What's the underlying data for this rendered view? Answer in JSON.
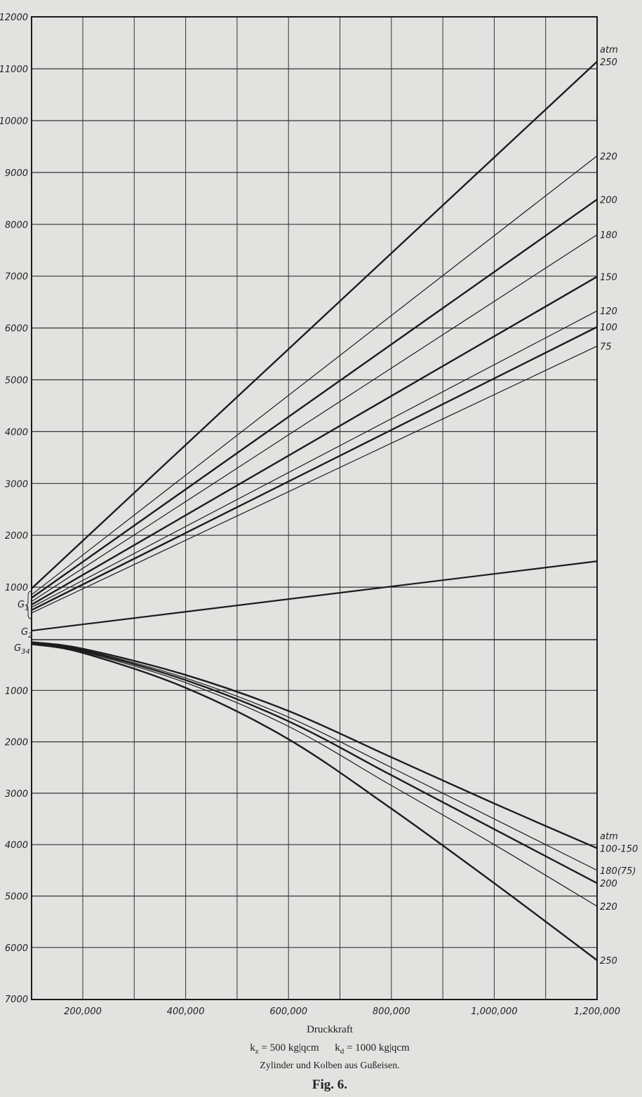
{
  "chart_data": {
    "type": "line",
    "title": "",
    "xlabel": "Druckkraft",
    "xlim": [
      100000,
      1200000
    ],
    "x_ticks": [
      "200,000",
      "400,000",
      "600,000",
      "800,000",
      "1,000,000",
      "1,200,000"
    ],
    "x_tick_values": [
      200000,
      400000,
      600000,
      800000,
      1000000,
      1200000
    ],
    "upper_panel": {
      "ylim": [
        0,
        12000
      ],
      "y_ticks": [
        "1000",
        "2000",
        "3000",
        "4000",
        "5000",
        "6000",
        "7000",
        "8000",
        "9000",
        "10000",
        "11000",
        "12000"
      ],
      "unit_label": "atm",
      "series": [
        {
          "name": "250",
          "x": [
            100000,
            1200000
          ],
          "y": [
            970,
            11140
          ],
          "bold": true
        },
        {
          "name": "220",
          "x": [
            100000,
            1200000
          ],
          "y": [
            850,
            9320
          ],
          "bold": false
        },
        {
          "name": "200",
          "x": [
            100000,
            1200000
          ],
          "y": [
            790,
            8480
          ],
          "bold": true
        },
        {
          "name": "180",
          "x": [
            100000,
            1200000
          ],
          "y": [
            720,
            7800
          ],
          "bold": false
        },
        {
          "name": "150",
          "x": [
            100000,
            1200000
          ],
          "y": [
            660,
            6990
          ],
          "bold": true
        },
        {
          "name": "120",
          "x": [
            100000,
            1200000
          ],
          "y": [
            610,
            6330
          ],
          "bold": false
        },
        {
          "name": "100",
          "x": [
            100000,
            1200000
          ],
          "y": [
            555,
            6020
          ],
          "bold": true
        },
        {
          "name": "75",
          "x": [
            100000,
            1200000
          ],
          "y": [
            500,
            5650
          ],
          "bold": false
        }
      ],
      "g2_series": {
        "x": [
          100000,
          1200000
        ],
        "y": [
          160,
          1500
        ]
      }
    },
    "lower_panel": {
      "ylim": [
        0,
        7000
      ],
      "inverted": true,
      "y_ticks": [
        "1000",
        "2000",
        "3000",
        "4000",
        "5000",
        "6000",
        "7000"
      ],
      "unit_label": "atm",
      "series": [
        {
          "name": "100-150",
          "x": [
            100000,
            200000,
            400000,
            600000,
            800000,
            1000000,
            1200000
          ],
          "y": [
            60,
            190,
            700,
            1400,
            2300,
            3200,
            4070
          ],
          "bold": true
        },
        {
          "name": "180(75)",
          "x": [
            100000,
            200000,
            400000,
            600000,
            800000,
            1000000,
            1200000
          ],
          "y": [
            70,
            210,
            760,
            1520,
            2500,
            3500,
            4500
          ],
          "bold": false
        },
        {
          "name": "200",
          "x": [
            100000,
            200000,
            400000,
            600000,
            800000,
            1000000,
            1200000
          ],
          "y": [
            80,
            230,
            800,
            1600,
            2650,
            3700,
            4750
          ],
          "bold": true
        },
        {
          "name": "220",
          "x": [
            100000,
            200000,
            400000,
            600000,
            800000,
            1000000,
            1200000
          ],
          "y": [
            90,
            250,
            850,
            1700,
            2850,
            4000,
            5200
          ],
          "bold": false
        },
        {
          "name": "250",
          "x": [
            100000,
            200000,
            400000,
            600000,
            800000,
            1000000,
            1200000
          ],
          "y": [
            100,
            270,
            950,
            1950,
            3300,
            4750,
            6250
          ],
          "bold": true
        }
      ]
    },
    "annotations": [
      "G1",
      "G2",
      "G34"
    ],
    "grid": true
  },
  "caption": {
    "xlabel": "Druckkraft",
    "kz_symbol": "k",
    "kz_sub": "z",
    "kz_value": " = 500 kg|qcm",
    "kd_symbol": "k",
    "kd_sub": "d",
    "kd_value": " = 1000 kg|qcm",
    "material": "Zylinder und Kolben aus Gußeisen.",
    "figure": "Fig. 6."
  }
}
